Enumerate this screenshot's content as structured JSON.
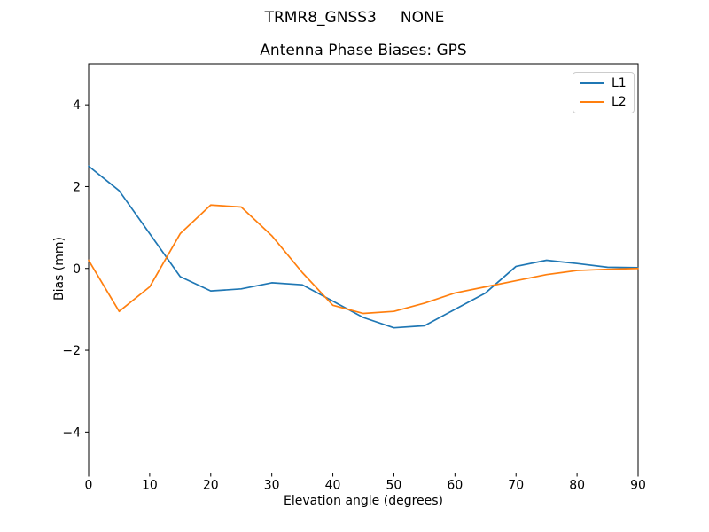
{
  "window": {
    "background": "#ffffff"
  },
  "header": {
    "suptitle": "TRMR8_GNSS3     NONE",
    "axes_title": "Antenna Phase Biases: GPS"
  },
  "chart_data": {
    "type": "line",
    "title": "Antenna Phase Biases: GPS",
    "suptitle": "TRMR8_GNSS3     NONE",
    "xlabel": "Elevation angle (degrees)",
    "ylabel": "Bias (mm)",
    "xlim": [
      0,
      90
    ],
    "ylim": [
      -5,
      5
    ],
    "xticks": [
      0,
      10,
      20,
      30,
      40,
      50,
      60,
      70,
      80,
      90
    ],
    "xtick_labels": [
      "0",
      "10",
      "20",
      "30",
      "40",
      "50",
      "60",
      "70",
      "80",
      "90"
    ],
    "yticks": [
      -4,
      -2,
      0,
      2,
      4
    ],
    "ytick_labels": [
      "−4",
      "−2",
      "0",
      "2",
      "4"
    ],
    "grid": false,
    "legend_position": "upper right",
    "axis_color": "#000000",
    "legend_border_color": "#cccccc",
    "x": [
      0,
      5,
      10,
      15,
      20,
      25,
      30,
      35,
      40,
      45,
      50,
      55,
      60,
      65,
      70,
      75,
      80,
      85,
      90
    ],
    "series": [
      {
        "name": "L1",
        "color": "#1f77b4",
        "values": [
          2.5,
          1.9,
          0.85,
          -0.2,
          -0.55,
          -0.5,
          -0.35,
          -0.4,
          -0.8,
          -1.2,
          -1.45,
          -1.4,
          -1.0,
          -0.6,
          0.05,
          0.2,
          0.12,
          0.03,
          0.02
        ]
      },
      {
        "name": "L2",
        "color": "#ff7f0e",
        "values": [
          0.2,
          -1.05,
          -0.45,
          0.85,
          1.55,
          1.5,
          0.8,
          -0.1,
          -0.9,
          -1.1,
          -1.05,
          -0.85,
          -0.6,
          -0.45,
          -0.3,
          -0.15,
          -0.05,
          -0.02,
          0.0
        ]
      }
    ]
  }
}
